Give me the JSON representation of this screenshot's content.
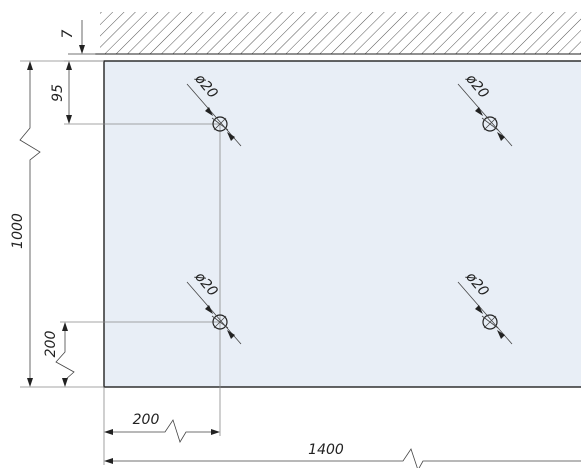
{
  "drawing": {
    "gap_label": "7",
    "top_offset_label": "95",
    "height_label": "1000",
    "bottom_offset_label": "200",
    "left_offset_label": "200",
    "width_label": "1400",
    "hole_labels": [
      "ø20",
      "ø20",
      "ø20",
      "ø20"
    ]
  }
}
